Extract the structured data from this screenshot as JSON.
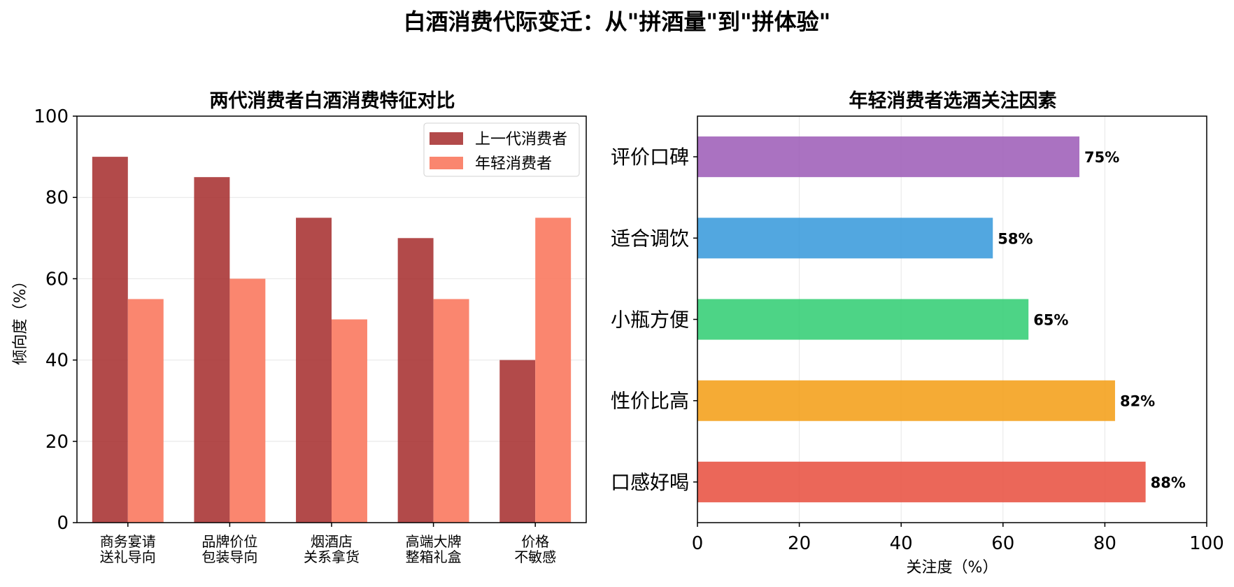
{
  "figure_title": "白酒消费代际变迁：从\"拼酒量\"到\"拼体验\"",
  "chart_data": [
    {
      "type": "bar",
      "title": "两代消费者白酒消费特征对比",
      "xlabel": "",
      "ylabel": "倾向度（%）",
      "ylim": [
        0,
        100
      ],
      "yticks": [
        0,
        20,
        40,
        60,
        80,
        100
      ],
      "grid": true,
      "legend_position": "top-right",
      "categories": [
        [
          "商务宴请",
          "送礼导向"
        ],
        [
          "品牌价位",
          "包装导向"
        ],
        [
          "烟酒店",
          "关系拿货"
        ],
        [
          "高端大牌",
          "整箱礼盒"
        ],
        [
          "价格",
          "不敏感"
        ]
      ],
      "series": [
        {
          "name": "上一代消费者",
          "values": [
            90,
            85,
            75,
            70,
            40
          ],
          "color": "#a52a2a"
        },
        {
          "name": "年轻消费者",
          "values": [
            55,
            60,
            50,
            55,
            75
          ],
          "color": "#fa7f67"
        }
      ]
    },
    {
      "type": "bar",
      "orientation": "horizontal",
      "title": "年轻消费者选酒关注因素",
      "xlabel": "关注度（%）",
      "ylabel": "",
      "xlim": [
        0,
        100
      ],
      "xticks": [
        0,
        20,
        40,
        60,
        80,
        100
      ],
      "grid": true,
      "categories": [
        "口感好喝",
        "性价比高",
        "小瓶方便",
        "适合调饮",
        "评价口碑"
      ],
      "values": [
        88,
        82,
        65,
        58,
        75
      ],
      "data_labels": [
        "88%",
        "82%",
        "65%",
        "58%",
        "75%"
      ],
      "colors": [
        "#e74c3c",
        "#f39c12",
        "#2ecc71",
        "#3498db",
        "#9b59b6"
      ]
    }
  ]
}
